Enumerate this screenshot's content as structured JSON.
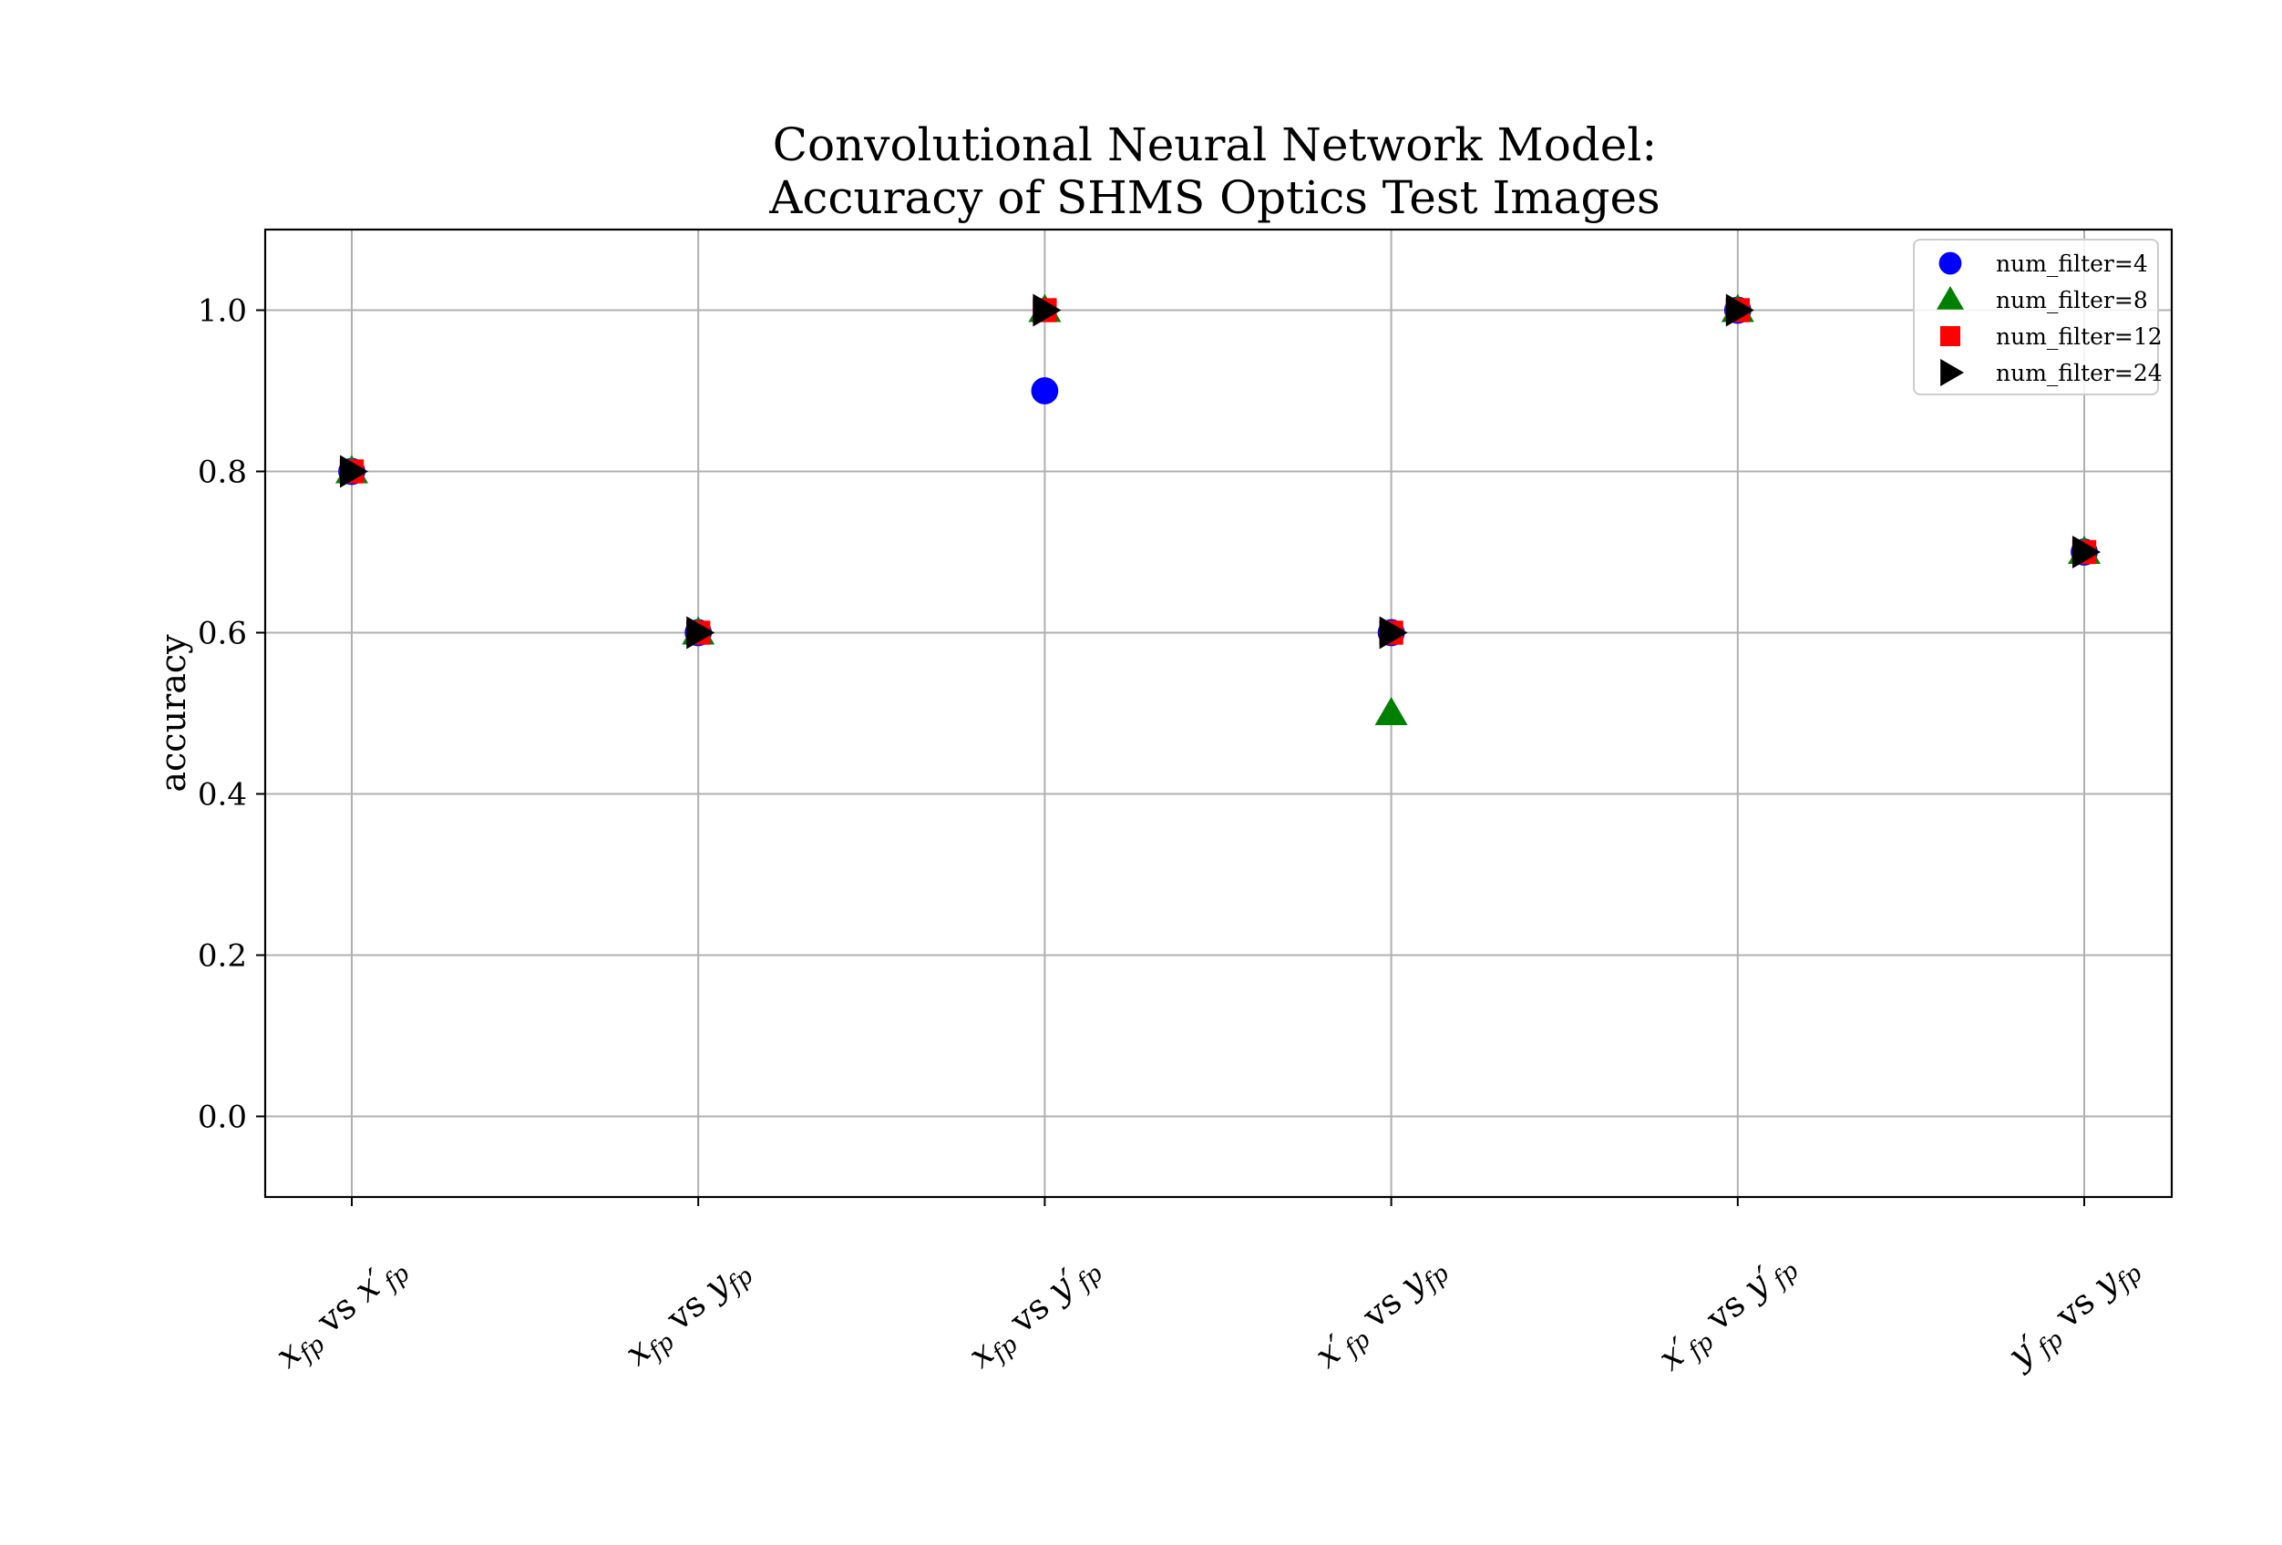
{
  "chart_data": {
    "type": "scatter",
    "title": [
      "Convolutional Neural Network Model:",
      "Accuracy of SHMS Optics Test Images"
    ],
    "xlabel": "",
    "ylabel": "accuracy",
    "ylim": [
      -0.1,
      1.1
    ],
    "yticks": [
      "0.0",
      "0.2",
      "0.4",
      "0.6",
      "0.8",
      "1.0"
    ],
    "grid": true,
    "legend_position": "top-right",
    "categories": [
      {
        "a": "x",
        "aprime": false,
        "b": "x",
        "bprime": true,
        "sub": "fp",
        "vs": "vs"
      },
      {
        "a": "x",
        "aprime": false,
        "b": "y",
        "bprime": false,
        "sub": "fp",
        "vs": "vs"
      },
      {
        "a": "x",
        "aprime": false,
        "b": "y",
        "bprime": true,
        "sub": "fp",
        "vs": "vs"
      },
      {
        "a": "x",
        "aprime": true,
        "b": "y",
        "bprime": false,
        "sub": "fp",
        "vs": "vs"
      },
      {
        "a": "x",
        "aprime": true,
        "b": "y",
        "bprime": true,
        "sub": "fp",
        "vs": "vs"
      },
      {
        "a": "y",
        "aprime": true,
        "b": "y",
        "bprime": false,
        "sub": "fp",
        "vs": "vs"
      }
    ],
    "series": [
      {
        "name": "num_filter=4",
        "marker": "circle",
        "color": "#0000ff",
        "values": [
          0.8,
          0.6,
          0.9,
          0.6,
          1.0,
          0.7
        ]
      },
      {
        "name": "num_filter=8",
        "marker": "triangle-up",
        "color": "#008000",
        "values": [
          0.8,
          0.6,
          1.0,
          0.5,
          1.0,
          0.7
        ]
      },
      {
        "name": "num_filter=12",
        "marker": "square",
        "color": "#ff0000",
        "values": [
          0.8,
          0.6,
          1.0,
          0.6,
          1.0,
          0.7
        ]
      },
      {
        "name": "num_filter=24",
        "marker": "triangle-right",
        "color": "#000000",
        "values": [
          0.8,
          0.6,
          1.0,
          0.6,
          1.0,
          0.7
        ]
      }
    ]
  }
}
